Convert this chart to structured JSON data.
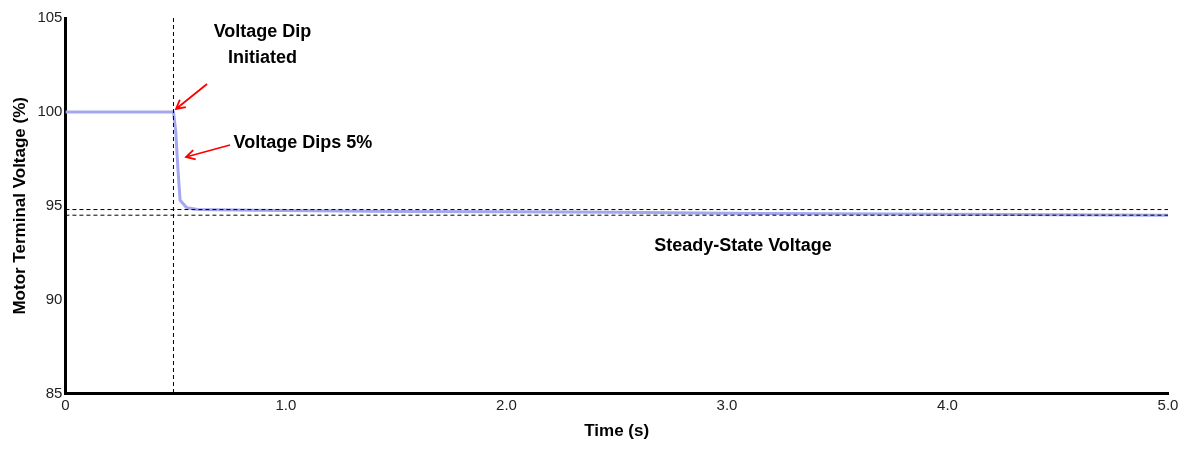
{
  "chart_data": {
    "type": "line",
    "xlabel": "Time (s)",
    "ylabel": "Motor Terminal Voltage (%)",
    "xlim": [
      0,
      5
    ],
    "xticks": [
      0,
      {
        "value": 1,
        "label": "1.0"
      },
      {
        "value": 2,
        "label": "2.0"
      },
      {
        "value": 3,
        "label": "3.0"
      },
      {
        "value": 4,
        "label": "4.0"
      },
      {
        "value": 5,
        "label": "5.0"
      }
    ],
    "ylim": [
      85,
      105
    ],
    "yticks": [
      85,
      90,
      95,
      100,
      105
    ],
    "grid": false,
    "legend": false,
    "marker": "none",
    "line_style": "solid",
    "series": [
      {
        "color": "#a3a8f0",
        "x": [
          0,
          0.49,
          0.5,
          0.51,
          0.52,
          0.55,
          0.6,
          1.0,
          1.5,
          2.0,
          2.5,
          3.0,
          3.5,
          4.0,
          4.5,
          5.0
        ],
        "values": [
          100,
          100,
          99,
          97,
          95.3,
          94.9,
          94.8,
          94.75,
          94.7,
          94.68,
          94.65,
          94.6,
          94.58,
          94.55,
          94.52,
          94.5
        ]
      }
    ],
    "ref_lines": [
      {
        "axis": "x",
        "value": 0.49,
        "color": "#000000",
        "line_style": "dashed"
      },
      {
        "axis": "y",
        "value": 94.8,
        "color": "#000000",
        "line_style": "dashed"
      },
      {
        "axis": "y",
        "value": 94.5,
        "color": "#000000",
        "line_style": "dashed"
      }
    ],
    "annotations": [
      {
        "text": "Voltage Dip Initiated",
        "x": 0.49,
        "y": 100
      },
      "Voltage Dips 5%",
      {
        "text": "Steady-State Voltage",
        "x": 3.1,
        "y": 94.5
      }
    ]
  }
}
